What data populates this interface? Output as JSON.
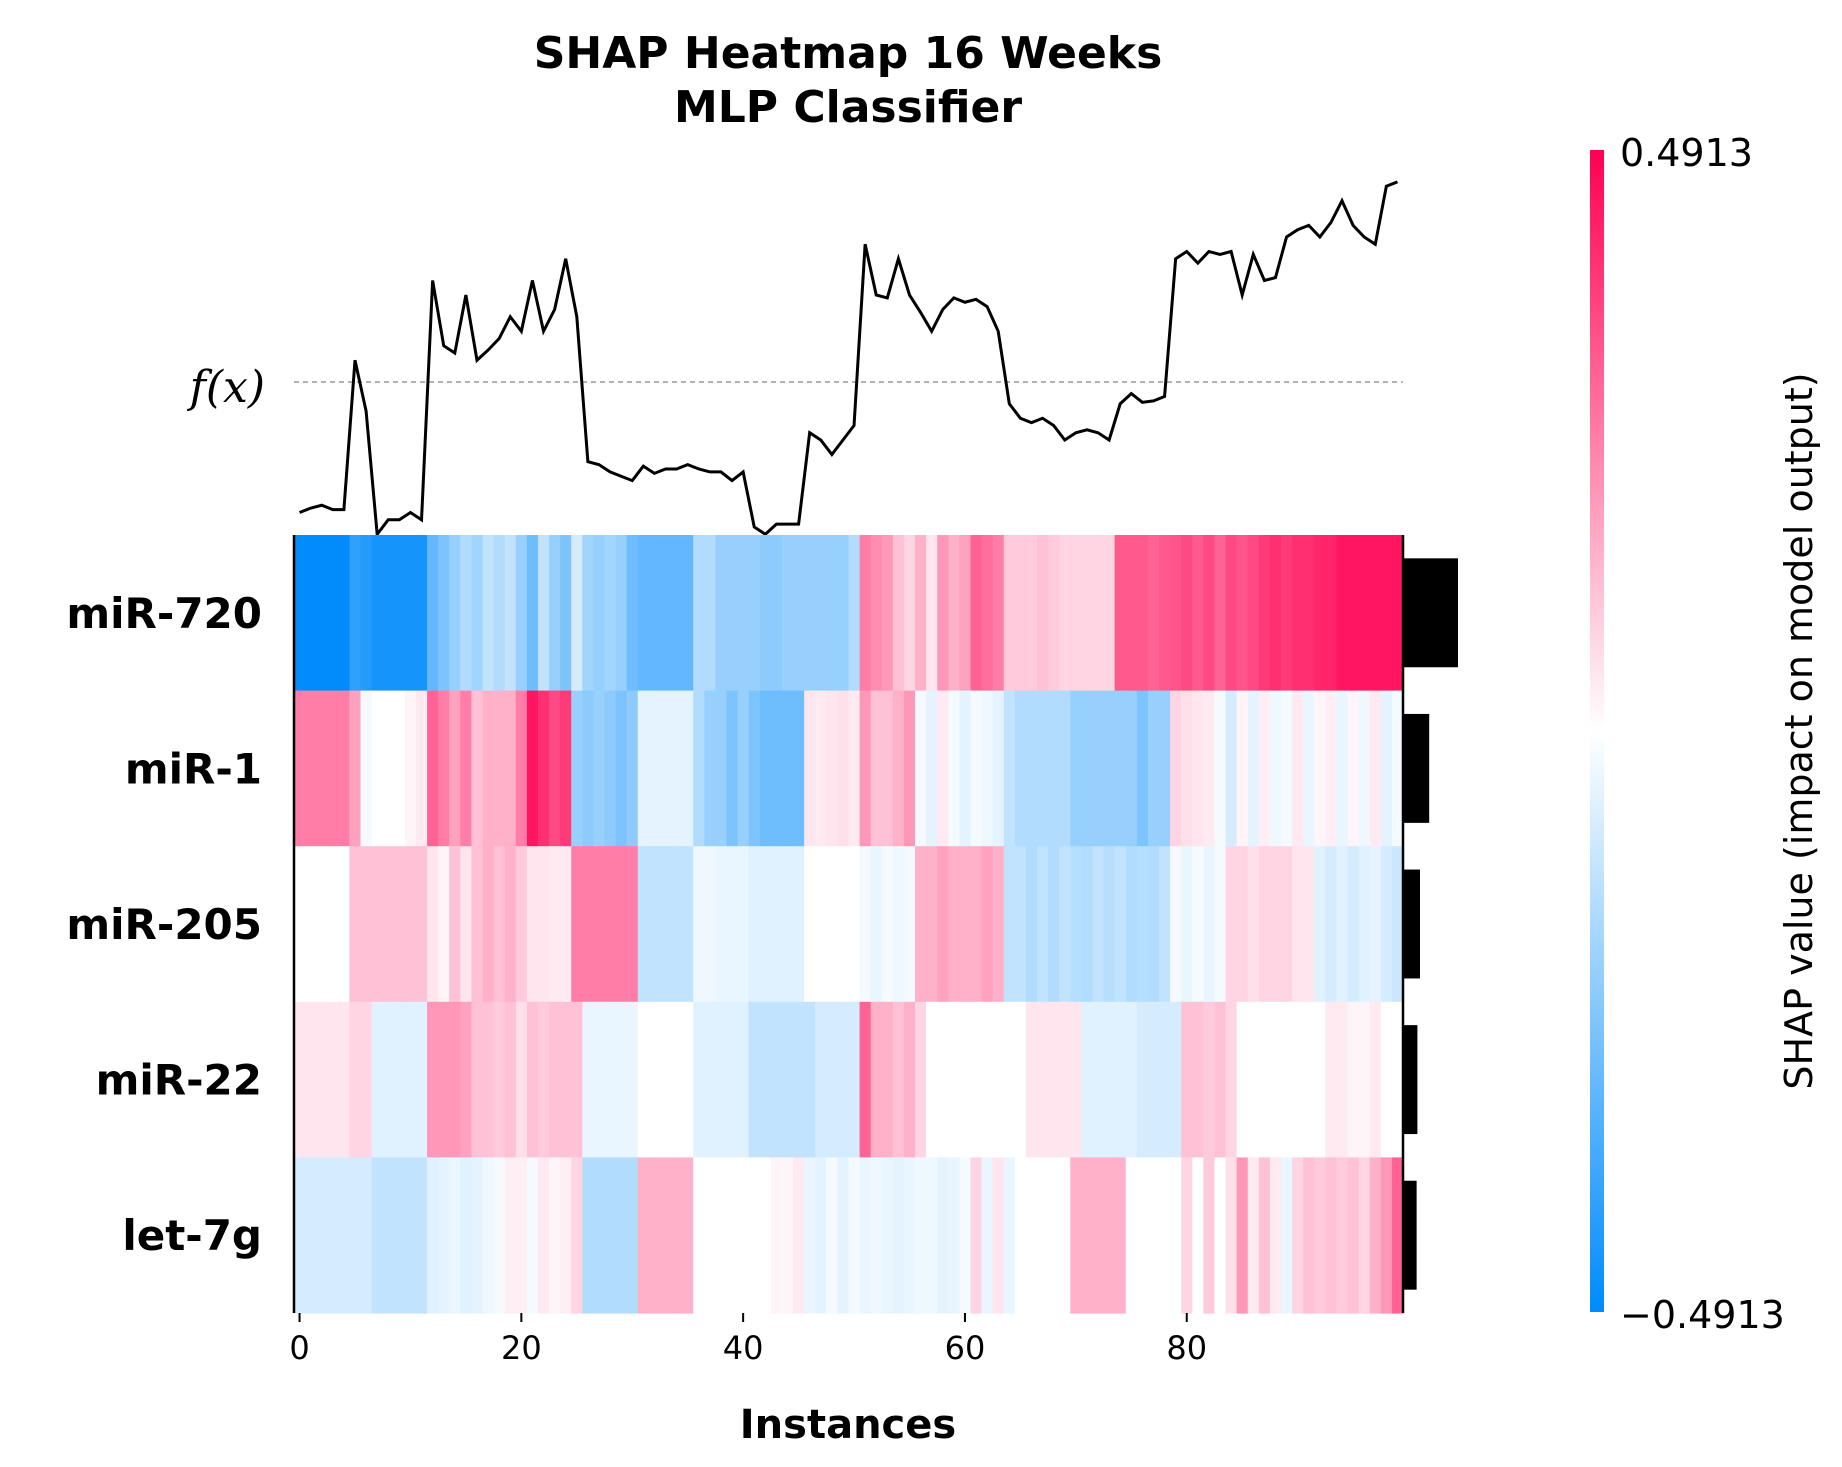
{
  "chart_data": {
    "type": "heatmap",
    "title": [
      "SHAP Heatmap 16 Weeks",
      "MLP Classifier"
    ],
    "xlabel": "Instances",
    "x_ticks": [
      0,
      20,
      40,
      60,
      80
    ],
    "n_instances": 100,
    "fx_label": "f(x)",
    "features": [
      "miR-720",
      "miR-1",
      "miR-205",
      "miR-22",
      "let-7g"
    ],
    "importance": [
      0.21,
      0.1,
      0.065,
      0.055,
      0.052
    ],
    "colorbar": {
      "min_label": "−0.4913",
      "max_label": "0.4913",
      "min": -0.4913,
      "max": 0.4913,
      "label": "SHAP value (impact on model output)",
      "low_color": "#008bfb",
      "mid_color": "#ffffff",
      "high_color": "#ff0052"
    },
    "fx_baseline": 0.0,
    "fx_values": [
      -0.9,
      -0.87,
      -0.85,
      -0.88,
      -0.88,
      0.15,
      -0.2,
      -1.05,
      -0.95,
      -0.95,
      -0.9,
      -0.95,
      0.7,
      0.25,
      0.2,
      0.6,
      0.15,
      0.22,
      0.3,
      0.45,
      0.35,
      0.7,
      0.35,
      0.5,
      0.85,
      0.45,
      -0.55,
      -0.57,
      -0.62,
      -0.65,
      -0.68,
      -0.58,
      -0.63,
      -0.6,
      -0.6,
      -0.57,
      -0.6,
      -0.62,
      -0.62,
      -0.68,
      -0.62,
      -1.0,
      -1.05,
      -0.98,
      -0.98,
      -0.98,
      -0.35,
      -0.4,
      -0.5,
      -0.4,
      -0.3,
      0.95,
      0.6,
      0.58,
      0.85,
      0.6,
      0.48,
      0.35,
      0.5,
      0.58,
      0.55,
      0.57,
      0.52,
      0.35,
      -0.15,
      -0.25,
      -0.28,
      -0.25,
      -0.3,
      -0.4,
      -0.35,
      -0.33,
      -0.35,
      -0.4,
      -0.15,
      -0.08,
      -0.14,
      -0.13,
      -0.1,
      0.85,
      0.9,
      0.82,
      0.9,
      0.88,
      0.9,
      0.6,
      0.88,
      0.7,
      0.72,
      1.0,
      1.05,
      1.08,
      1.0,
      1.1,
      1.25,
      1.08,
      1.0,
      0.95,
      1.35,
      1.38
    ],
    "shap_values": [
      [
        -0.49,
        -0.49,
        -0.49,
        -0.49,
        -0.49,
        -0.4,
        -0.42,
        -0.45,
        -0.45,
        -0.45,
        -0.45,
        -0.45,
        -0.3,
        -0.25,
        -0.2,
        -0.15,
        -0.18,
        -0.12,
        -0.15,
        -0.12,
        -0.2,
        -0.28,
        -0.12,
        -0.2,
        -0.25,
        -0.08,
        -0.18,
        -0.2,
        -0.18,
        -0.2,
        -0.28,
        -0.3,
        -0.3,
        -0.3,
        -0.3,
        -0.3,
        -0.15,
        -0.15,
        -0.2,
        -0.2,
        -0.2,
        -0.2,
        -0.22,
        -0.22,
        -0.2,
        -0.2,
        -0.2,
        -0.2,
        -0.2,
        -0.2,
        -0.15,
        0.25,
        0.22,
        0.2,
        0.12,
        0.08,
        0.15,
        0.05,
        0.2,
        0.15,
        0.18,
        0.3,
        0.28,
        0.25,
        0.1,
        0.1,
        0.1,
        0.12,
        0.1,
        0.08,
        0.08,
        0.08,
        0.08,
        0.08,
        0.32,
        0.32,
        0.32,
        0.3,
        0.32,
        0.33,
        0.35,
        0.32,
        0.35,
        0.3,
        0.35,
        0.33,
        0.35,
        0.38,
        0.4,
        0.38,
        0.4,
        0.4,
        0.42,
        0.42,
        0.45,
        0.45,
        0.45,
        0.45,
        0.45,
        0.45
      ],
      [
        0.25,
        0.25,
        0.25,
        0.25,
        0.25,
        0.18,
        -0.02,
        0.0,
        0.0,
        0.0,
        0.02,
        0.04,
        0.3,
        0.25,
        0.18,
        0.25,
        0.12,
        0.15,
        0.15,
        0.15,
        0.25,
        0.45,
        0.4,
        0.35,
        0.38,
        -0.2,
        -0.22,
        -0.2,
        -0.22,
        -0.25,
        -0.22,
        -0.05,
        -0.05,
        -0.05,
        -0.05,
        -0.05,
        -0.15,
        -0.2,
        -0.2,
        -0.25,
        -0.2,
        -0.25,
        -0.28,
        -0.28,
        -0.28,
        -0.28,
        0.05,
        0.04,
        0.05,
        0.06,
        0.04,
        0.2,
        0.12,
        0.12,
        0.15,
        0.2,
        -0.02,
        -0.05,
        0.04,
        -0.02,
        -0.05,
        -0.02,
        -0.03,
        -0.05,
        -0.12,
        -0.15,
        -0.15,
        -0.15,
        -0.15,
        -0.15,
        -0.2,
        -0.2,
        -0.2,
        -0.2,
        -0.2,
        -0.2,
        -0.25,
        -0.2,
        -0.2,
        0.08,
        0.06,
        0.05,
        0.04,
        -0.02,
        -0.08,
        0.02,
        -0.05,
        0.03,
        -0.03,
        -0.02,
        0.04,
        -0.04,
        0.02,
        0.03,
        -0.04,
        0.02,
        -0.03,
        0.04,
        -0.05,
        -0.02
      ],
      [
        0.0,
        0.0,
        0.0,
        0.0,
        0.0,
        0.12,
        0.12,
        0.12,
        0.12,
        0.12,
        0.12,
        0.12,
        0.05,
        0.02,
        0.12,
        0.05,
        0.12,
        0.15,
        0.12,
        0.15,
        0.1,
        0.05,
        0.05,
        0.04,
        0.04,
        0.25,
        0.25,
        0.25,
        0.25,
        0.25,
        0.25,
        -0.12,
        -0.12,
        -0.12,
        -0.12,
        -0.12,
        -0.03,
        -0.03,
        -0.04,
        -0.04,
        -0.04,
        -0.06,
        -0.06,
        -0.06,
        -0.06,
        -0.06,
        0.0,
        0.0,
        0.0,
        0.0,
        0.0,
        -0.02,
        -0.04,
        -0.02,
        -0.03,
        -0.02,
        0.15,
        0.15,
        0.18,
        0.15,
        0.15,
        0.15,
        0.18,
        0.15,
        -0.12,
        -0.12,
        -0.15,
        -0.12,
        -0.15,
        -0.12,
        -0.14,
        -0.15,
        -0.12,
        -0.14,
        -0.12,
        -0.15,
        -0.14,
        -0.15,
        -0.12,
        -0.02,
        -0.04,
        -0.02,
        -0.04,
        -0.02,
        0.08,
        0.08,
        0.06,
        0.08,
        0.08,
        0.08,
        0.05,
        0.05,
        -0.06,
        -0.08,
        -0.06,
        -0.08,
        -0.06,
        -0.05,
        -0.08,
        -0.1
      ],
      [
        0.05,
        0.05,
        0.05,
        0.05,
        0.05,
        0.08,
        0.08,
        -0.06,
        -0.06,
        -0.06,
        -0.06,
        -0.06,
        0.2,
        0.2,
        0.2,
        0.18,
        0.12,
        0.12,
        0.1,
        0.12,
        0.06,
        0.12,
        0.1,
        0.12,
        0.12,
        0.12,
        -0.04,
        -0.04,
        -0.04,
        -0.04,
        -0.04,
        0.0,
        0.0,
        0.0,
        0.0,
        0.0,
        -0.06,
        -0.06,
        -0.06,
        -0.06,
        -0.06,
        -0.12,
        -0.12,
        -0.12,
        -0.12,
        -0.12,
        -0.12,
        -0.08,
        -0.08,
        -0.08,
        -0.08,
        0.3,
        0.15,
        0.15,
        0.12,
        0.15,
        0.08,
        0.0,
        0.0,
        0.0,
        0.0,
        0.0,
        0.0,
        0.0,
        0.0,
        0.0,
        0.05,
        0.05,
        0.05,
        0.05,
        0.05,
        -0.06,
        -0.06,
        -0.06,
        -0.06,
        -0.06,
        -0.08,
        -0.08,
        -0.08,
        -0.08,
        0.12,
        0.12,
        0.1,
        0.12,
        0.08,
        0.0,
        0.0,
        0.0,
        0.0,
        0.0,
        0.0,
        0.0,
        0.0,
        0.04,
        0.04,
        0.02,
        0.02,
        0.04,
        0.0,
        0.0
      ],
      [
        -0.08,
        -0.08,
        -0.08,
        -0.08,
        -0.08,
        -0.08,
        -0.08,
        -0.12,
        -0.12,
        -0.12,
        -0.12,
        -0.12,
        -0.06,
        -0.05,
        -0.04,
        -0.06,
        -0.05,
        -0.03,
        -0.02,
        0.03,
        0.03,
        -0.02,
        0.04,
        0.02,
        0.03,
        0.08,
        -0.15,
        -0.15,
        -0.15,
        -0.15,
        -0.15,
        0.15,
        0.15,
        0.15,
        0.15,
        0.15,
        0.0,
        0.0,
        0.0,
        0.0,
        0.0,
        0.0,
        0.0,
        0.02,
        0.02,
        0.04,
        -0.04,
        -0.05,
        -0.02,
        -0.05,
        -0.02,
        -0.04,
        -0.03,
        -0.04,
        -0.05,
        -0.04,
        -0.03,
        -0.03,
        -0.05,
        -0.04,
        -0.02,
        0.08,
        -0.04,
        0.05,
        -0.04,
        0.0,
        0.0,
        0.0,
        0.0,
        0.0,
        0.15,
        0.15,
        0.15,
        0.15,
        0.15,
        0.0,
        0.0,
        0.0,
        0.0,
        0.0,
        0.08,
        0.0,
        0.1,
        0.0,
        0.06,
        0.2,
        0.04,
        0.12,
        0.04,
        -0.04,
        0.08,
        0.12,
        0.1,
        0.12,
        0.1,
        0.12,
        0.08,
        0.15,
        0.2,
        0.3
      ]
    ]
  }
}
